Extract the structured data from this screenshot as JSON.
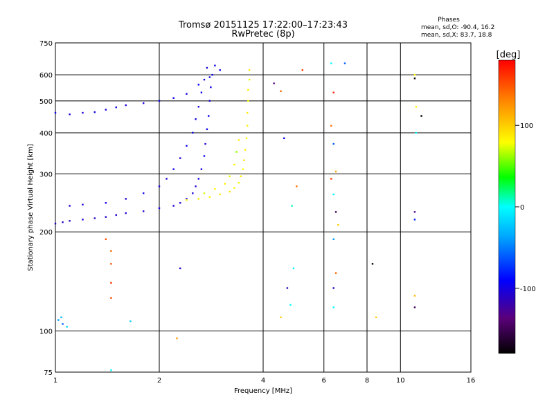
{
  "chart_data": {
    "type": "scatter",
    "title": "Tromsø 20151125 17:22:00–17:23:43",
    "subtitle": "RwPretec (8p)",
    "stats": {
      "heading": "Phases",
      "line1": "mean, sd,O: -90.4, 16.2",
      "line2": "mean, sd,X:  83.7, 18.8"
    },
    "xlabel": "Frequency [MHz]",
    "ylabel": "Stationary phase Virtual Height [km]",
    "x_scale": "log",
    "y_scale": "log",
    "xlim": [
      1,
      16
    ],
    "ylim": [
      75,
      750
    ],
    "x_ticks": [
      1,
      2,
      4,
      6,
      8,
      10,
      16
    ],
    "y_ticks": [
      75,
      100,
      200,
      300,
      400,
      500,
      600,
      750
    ],
    "grid": true,
    "colorbar": {
      "label": "[deg]",
      "range": [
        -180,
        180
      ],
      "ticks": [
        100,
        0,
        -100
      ]
    },
    "series": [
      {
        "description_of_trace": "O-mode F layer (blue)",
        "points": [
          [
            1.0,
            212,
            -120
          ],
          [
            1.05,
            214,
            -115
          ],
          [
            1.1,
            216,
            -118
          ],
          [
            1.2,
            218,
            -110
          ],
          [
            1.3,
            220,
            -112
          ],
          [
            1.4,
            222,
            -115
          ],
          [
            1.5,
            225,
            -108
          ],
          [
            1.6,
            228,
            -112
          ],
          [
            1.8,
            231,
            -110
          ],
          [
            2.0,
            236,
            -105
          ],
          [
            2.2,
            240,
            -110
          ],
          [
            2.3,
            245,
            -108
          ],
          [
            2.4,
            252,
            -100
          ],
          [
            2.5,
            262,
            -105
          ],
          [
            2.55,
            275,
            -110
          ],
          [
            2.6,
            290,
            -100
          ],
          [
            2.65,
            310,
            -105
          ],
          [
            2.7,
            340,
            -100
          ],
          [
            2.72,
            370,
            -110
          ],
          [
            2.75,
            410,
            -95
          ],
          [
            2.78,
            450,
            -100
          ],
          [
            2.8,
            500,
            -105
          ],
          [
            2.82,
            550,
            -100
          ],
          [
            2.85,
            600,
            -95
          ],
          [
            2.9,
            640,
            -100
          ],
          [
            1.1,
            240,
            -110
          ],
          [
            1.2,
            242,
            -105
          ],
          [
            1.4,
            245,
            -100
          ],
          [
            1.6,
            252,
            -110
          ],
          [
            1.8,
            262,
            -100
          ],
          [
            2.0,
            275,
            -105
          ],
          [
            2.1,
            290,
            -110
          ],
          [
            2.2,
            310,
            -100
          ],
          [
            2.3,
            335,
            -105
          ],
          [
            2.4,
            365,
            -95
          ],
          [
            2.5,
            400,
            -100
          ],
          [
            2.55,
            440,
            -105
          ],
          [
            2.6,
            480,
            -100
          ],
          [
            2.65,
            530,
            -95
          ],
          [
            2.7,
            580,
            -100
          ],
          [
            2.75,
            630,
            -105
          ],
          [
            1.0,
            460,
            -100
          ],
          [
            1.1,
            455,
            -105
          ],
          [
            1.2,
            460,
            -110
          ],
          [
            1.3,
            462,
            -100
          ],
          [
            1.4,
            470,
            -105
          ],
          [
            1.5,
            478,
            -100
          ],
          [
            1.6,
            485,
            -110
          ],
          [
            1.8,
            492,
            -105
          ],
          [
            2.0,
            500,
            -100
          ],
          [
            2.2,
            510,
            -95
          ],
          [
            2.4,
            525,
            -100
          ],
          [
            2.6,
            560,
            -90
          ],
          [
            2.8,
            590,
            -100
          ],
          [
            3.0,
            620,
            -95
          ]
        ]
      },
      {
        "description_of_trace": "X-mode F layer (yellow/green)",
        "points": [
          [
            2.4,
            250,
            90
          ],
          [
            2.6,
            252,
            85
          ],
          [
            2.8,
            255,
            80
          ],
          [
            3.0,
            260,
            85
          ],
          [
            3.2,
            265,
            90
          ],
          [
            3.3,
            272,
            80
          ],
          [
            3.4,
            282,
            75
          ],
          [
            3.45,
            295,
            85
          ],
          [
            3.5,
            310,
            80
          ],
          [
            3.52,
            330,
            90
          ],
          [
            3.55,
            355,
            85
          ],
          [
            3.58,
            385,
            80
          ],
          [
            3.6,
            420,
            85
          ],
          [
            3.6,
            460,
            90
          ],
          [
            3.62,
            500,
            80
          ],
          [
            3.62,
            540,
            85
          ],
          [
            3.65,
            580,
            75
          ],
          [
            3.65,
            620,
            90
          ],
          [
            2.7,
            262,
            70
          ],
          [
            2.9,
            270,
            80
          ],
          [
            3.1,
            280,
            85
          ],
          [
            3.2,
            295,
            75
          ],
          [
            3.3,
            320,
            80
          ],
          [
            3.35,
            350,
            60
          ],
          [
            3.4,
            380,
            85
          ]
        ]
      },
      {
        "description_of_trace": "Scattered echoes",
        "points": [
          [
            1.05,
            105,
            -60
          ],
          [
            1.02,
            108,
            -40
          ],
          [
            1.04,
            110,
            -30
          ],
          [
            1.08,
            103,
            -20
          ],
          [
            1.4,
            190,
            150
          ],
          [
            1.45,
            175,
            140
          ],
          [
            1.45,
            160,
            150
          ],
          [
            1.45,
            140,
            160
          ],
          [
            1.45,
            126,
            150
          ],
          [
            2.3,
            155,
            -110
          ],
          [
            2.25,
            95,
            120
          ],
          [
            1.65,
            107,
            -20
          ],
          [
            1.45,
            76,
            0
          ],
          [
            4.3,
            565,
            -150
          ],
          [
            4.5,
            535,
            140
          ],
          [
            5.2,
            620,
            160
          ],
          [
            4.6,
            385,
            -100
          ],
          [
            5.0,
            275,
            140
          ],
          [
            4.85,
            240,
            10
          ],
          [
            4.9,
            155,
            0
          ],
          [
            4.7,
            135,
            -120
          ],
          [
            4.5,
            110,
            100
          ],
          [
            4.8,
            120,
            0
          ],
          [
            6.3,
            650,
            0
          ],
          [
            6.4,
            530,
            170
          ],
          [
            6.3,
            420,
            140
          ],
          [
            6.4,
            370,
            -60
          ],
          [
            6.5,
            305,
            120
          ],
          [
            6.3,
            290,
            160
          ],
          [
            6.4,
            260,
            0
          ],
          [
            6.5,
            230,
            -160
          ],
          [
            6.6,
            210,
            100
          ],
          [
            6.4,
            190,
            -40
          ],
          [
            6.5,
            150,
            140
          ],
          [
            6.4,
            135,
            -120
          ],
          [
            6.4,
            118,
            0
          ],
          [
            6.9,
            650,
            -60
          ],
          [
            8.3,
            160,
            -180
          ],
          [
            8.5,
            110,
            100
          ],
          [
            11.0,
            600,
            80
          ],
          [
            11.0,
            585,
            -180
          ],
          [
            11.5,
            450,
            -180
          ],
          [
            11.1,
            400,
            0
          ],
          [
            11.0,
            230,
            -140
          ],
          [
            11.0,
            218,
            -80
          ],
          [
            11.0,
            128,
            110
          ],
          [
            11.0,
            118,
            -160
          ],
          [
            11.1,
            480,
            80
          ]
        ]
      }
    ]
  }
}
